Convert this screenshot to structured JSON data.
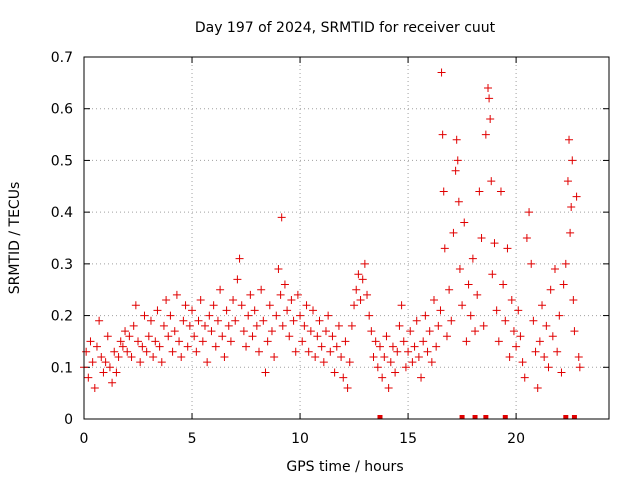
{
  "chart_data": {
    "type": "scatter",
    "title": "Day 197 of 2024, SRMTID for receiver cuut",
    "xlabel": "GPS time / hours",
    "ylabel": "SRMTID / TECUs",
    "xlim": [
      0,
      24.3
    ],
    "ylim": [
      0,
      0.7
    ],
    "xticks": [
      0,
      5,
      10,
      15,
      20
    ],
    "yticks": [
      0,
      0.1,
      0.2,
      0.3,
      0.4,
      0.5,
      0.6,
      0.7
    ],
    "xtick_labels": [
      "0",
      "5",
      "10",
      "15",
      "20"
    ],
    "ytick_labels": [
      "0",
      "0.1",
      "0.2",
      "0.3",
      "0.4",
      "0.5",
      "0.6",
      "0.7"
    ],
    "grid": true,
    "marker": "+",
    "color": "#e00000",
    "series": [
      {
        "name": "SRMTID",
        "points": [
          [
            0.0,
            0.1
          ],
          [
            0.1,
            0.13
          ],
          [
            0.2,
            0.08
          ],
          [
            0.3,
            0.15
          ],
          [
            0.4,
            0.11
          ],
          [
            0.5,
            0.06
          ],
          [
            0.6,
            0.14
          ],
          [
            0.7,
            0.19
          ],
          [
            0.8,
            0.12
          ],
          [
            0.9,
            0.09
          ],
          [
            1.0,
            0.11
          ],
          [
            1.1,
            0.16
          ],
          [
            1.2,
            0.1
          ],
          [
            1.3,
            0.07
          ],
          [
            1.4,
            0.13
          ],
          [
            1.5,
            0.09
          ],
          [
            1.6,
            0.12
          ],
          [
            1.7,
            0.15
          ],
          [
            1.8,
            0.14
          ],
          [
            1.9,
            0.17
          ],
          [
            2.0,
            0.13
          ],
          [
            2.1,
            0.16
          ],
          [
            2.2,
            0.12
          ],
          [
            2.3,
            0.18
          ],
          [
            2.4,
            0.22
          ],
          [
            2.5,
            0.15
          ],
          [
            2.6,
            0.11
          ],
          [
            2.7,
            0.14
          ],
          [
            2.8,
            0.2
          ],
          [
            2.9,
            0.13
          ],
          [
            3.0,
            0.16
          ],
          [
            3.1,
            0.19
          ],
          [
            3.2,
            0.12
          ],
          [
            3.3,
            0.15
          ],
          [
            3.4,
            0.21
          ],
          [
            3.5,
            0.14
          ],
          [
            3.6,
            0.11
          ],
          [
            3.7,
            0.18
          ],
          [
            3.8,
            0.23
          ],
          [
            3.9,
            0.16
          ],
          [
            4.0,
            0.2
          ],
          [
            4.1,
            0.13
          ],
          [
            4.2,
            0.17
          ],
          [
            4.3,
            0.24
          ],
          [
            4.4,
            0.15
          ],
          [
            4.5,
            0.12
          ],
          [
            4.6,
            0.19
          ],
          [
            4.7,
            0.22
          ],
          [
            4.8,
            0.14
          ],
          [
            4.9,
            0.18
          ],
          [
            5.0,
            0.21
          ],
          [
            5.1,
            0.16
          ],
          [
            5.2,
            0.13
          ],
          [
            5.3,
            0.19
          ],
          [
            5.4,
            0.23
          ],
          [
            5.5,
            0.15
          ],
          [
            5.6,
            0.18
          ],
          [
            5.7,
            0.11
          ],
          [
            5.8,
            0.2
          ],
          [
            5.9,
            0.17
          ],
          [
            6.0,
            0.22
          ],
          [
            6.1,
            0.14
          ],
          [
            6.2,
            0.19
          ],
          [
            6.3,
            0.25
          ],
          [
            6.4,
            0.16
          ],
          [
            6.5,
            0.12
          ],
          [
            6.6,
            0.21
          ],
          [
            6.7,
            0.18
          ],
          [
            6.8,
            0.15
          ],
          [
            6.9,
            0.23
          ],
          [
            7.0,
            0.19
          ],
          [
            7.1,
            0.27
          ],
          [
            7.2,
            0.31
          ],
          [
            7.3,
            0.22
          ],
          [
            7.4,
            0.17
          ],
          [
            7.5,
            0.14
          ],
          [
            7.6,
            0.2
          ],
          [
            7.7,
            0.24
          ],
          [
            7.8,
            0.16
          ],
          [
            7.9,
            0.21
          ],
          [
            8.0,
            0.18
          ],
          [
            8.1,
            0.13
          ],
          [
            8.2,
            0.25
          ],
          [
            8.3,
            0.19
          ],
          [
            8.4,
            0.09
          ],
          [
            8.5,
            0.15
          ],
          [
            8.6,
            0.22
          ],
          [
            8.7,
            0.17
          ],
          [
            8.8,
            0.12
          ],
          [
            8.9,
            0.2
          ],
          [
            9.0,
            0.29
          ],
          [
            9.1,
            0.24
          ],
          [
            9.15,
            0.39
          ],
          [
            9.2,
            0.18
          ],
          [
            9.3,
            0.26
          ],
          [
            9.4,
            0.21
          ],
          [
            9.5,
            0.16
          ],
          [
            9.6,
            0.23
          ],
          [
            9.7,
            0.19
          ],
          [
            9.8,
            0.13
          ],
          [
            9.9,
            0.24
          ],
          [
            10.0,
            0.2
          ],
          [
            10.1,
            0.15
          ],
          [
            10.2,
            0.18
          ],
          [
            10.3,
            0.22
          ],
          [
            10.4,
            0.13
          ],
          [
            10.5,
            0.17
          ],
          [
            10.6,
            0.21
          ],
          [
            10.7,
            0.12
          ],
          [
            10.8,
            0.16
          ],
          [
            10.9,
            0.19
          ],
          [
            11.0,
            0.14
          ],
          [
            11.1,
            0.11
          ],
          [
            11.2,
            0.17
          ],
          [
            11.3,
            0.2
          ],
          [
            11.4,
            0.13
          ],
          [
            11.5,
            0.16
          ],
          [
            11.6,
            0.09
          ],
          [
            11.7,
            0.14
          ],
          [
            11.8,
            0.18
          ],
          [
            11.9,
            0.12
          ],
          [
            12.0,
            0.08
          ],
          [
            12.1,
            0.15
          ],
          [
            12.2,
            0.06
          ],
          [
            12.3,
            0.11
          ],
          [
            12.4,
            0.18
          ],
          [
            12.5,
            0.22
          ],
          [
            12.6,
            0.25
          ],
          [
            12.7,
            0.28
          ],
          [
            12.8,
            0.23
          ],
          [
            12.9,
            0.27
          ],
          [
            13.0,
            0.3
          ],
          [
            13.1,
            0.24
          ],
          [
            13.2,
            0.2
          ],
          [
            13.3,
            0.17
          ],
          [
            13.4,
            0.12
          ],
          [
            13.5,
            0.15
          ],
          [
            13.6,
            0.1
          ],
          [
            13.7,
            0.14
          ],
          [
            13.8,
            0.08
          ],
          [
            13.9,
            0.12
          ],
          [
            14.0,
            0.16
          ],
          [
            14.1,
            0.06
          ],
          [
            14.2,
            0.11
          ],
          [
            14.3,
            0.14
          ],
          [
            14.4,
            0.09
          ],
          [
            14.5,
            0.13
          ],
          [
            14.6,
            0.18
          ],
          [
            14.7,
            0.22
          ],
          [
            14.8,
            0.15
          ],
          [
            14.9,
            0.1
          ],
          [
            15.0,
            0.13
          ],
          [
            15.1,
            0.17
          ],
          [
            15.2,
            0.11
          ],
          [
            15.3,
            0.14
          ],
          [
            15.4,
            0.19
          ],
          [
            15.5,
            0.12
          ],
          [
            15.6,
            0.08
          ],
          [
            15.7,
            0.15
          ],
          [
            15.8,
            0.2
          ],
          [
            15.9,
            0.13
          ],
          [
            16.0,
            0.17
          ],
          [
            16.1,
            0.11
          ],
          [
            16.2,
            0.23
          ],
          [
            16.3,
            0.14
          ],
          [
            16.4,
            0.18
          ],
          [
            16.5,
            0.21
          ],
          [
            16.55,
            0.67
          ],
          [
            16.6,
            0.55
          ],
          [
            16.65,
            0.44
          ],
          [
            16.7,
            0.33
          ],
          [
            16.8,
            0.16
          ],
          [
            16.9,
            0.25
          ],
          [
            17.0,
            0.19
          ],
          [
            17.1,
            0.36
          ],
          [
            17.2,
            0.48
          ],
          [
            17.25,
            0.54
          ],
          [
            17.3,
            0.5
          ],
          [
            17.35,
            0.42
          ],
          [
            17.4,
            0.29
          ],
          [
            17.5,
            0.22
          ],
          [
            17.6,
            0.38
          ],
          [
            17.7,
            0.15
          ],
          [
            17.8,
            0.26
          ],
          [
            17.9,
            0.2
          ],
          [
            18.0,
            0.31
          ],
          [
            18.1,
            0.17
          ],
          [
            18.2,
            0.24
          ],
          [
            18.3,
            0.44
          ],
          [
            18.4,
            0.35
          ],
          [
            18.5,
            0.18
          ],
          [
            18.6,
            0.55
          ],
          [
            18.7,
            0.64
          ],
          [
            18.75,
            0.62
          ],
          [
            18.8,
            0.58
          ],
          [
            18.85,
            0.46
          ],
          [
            18.9,
            0.28
          ],
          [
            19.0,
            0.34
          ],
          [
            19.1,
            0.21
          ],
          [
            19.2,
            0.15
          ],
          [
            19.3,
            0.44
          ],
          [
            19.4,
            0.26
          ],
          [
            19.5,
            0.19
          ],
          [
            19.6,
            0.33
          ],
          [
            19.7,
            0.12
          ],
          [
            19.8,
            0.23
          ],
          [
            19.9,
            0.17
          ],
          [
            20.0,
            0.14
          ],
          [
            20.1,
            0.21
          ],
          [
            20.2,
            0.16
          ],
          [
            20.3,
            0.11
          ],
          [
            20.4,
            0.08
          ],
          [
            20.5,
            0.35
          ],
          [
            20.6,
            0.4
          ],
          [
            20.7,
            0.3
          ],
          [
            20.8,
            0.19
          ],
          [
            20.9,
            0.13
          ],
          [
            21.0,
            0.06
          ],
          [
            21.1,
            0.15
          ],
          [
            21.2,
            0.22
          ],
          [
            21.3,
            0.12
          ],
          [
            21.4,
            0.18
          ],
          [
            21.5,
            0.1
          ],
          [
            21.6,
            0.25
          ],
          [
            21.7,
            0.16
          ],
          [
            21.8,
            0.29
          ],
          [
            21.9,
            0.13
          ],
          [
            22.0,
            0.2
          ],
          [
            22.1,
            0.09
          ],
          [
            22.2,
            0.26
          ],
          [
            22.3,
            0.3
          ],
          [
            22.4,
            0.46
          ],
          [
            22.45,
            0.54
          ],
          [
            22.5,
            0.36
          ],
          [
            22.55,
            0.41
          ],
          [
            22.6,
            0.5
          ],
          [
            22.65,
            0.23
          ],
          [
            22.7,
            0.17
          ],
          [
            22.8,
            0.43
          ],
          [
            22.9,
            0.12
          ],
          [
            22.95,
            0.1
          ]
        ]
      }
    ],
    "rug_x": [
      13.7,
      17.5,
      18.1,
      18.6,
      19.5,
      22.3,
      22.7
    ]
  }
}
